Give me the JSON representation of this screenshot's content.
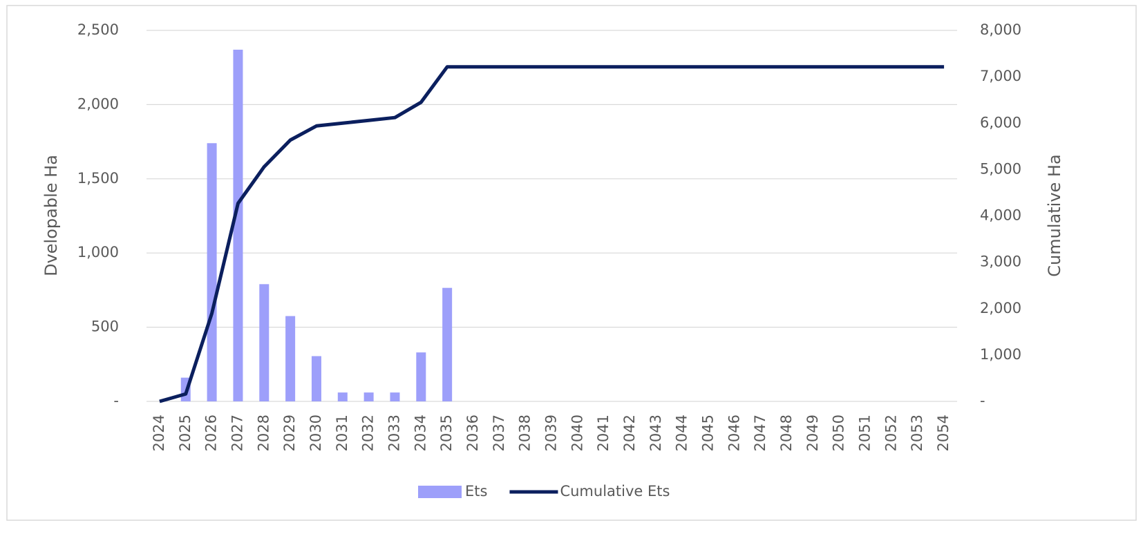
{
  "chart_data": {
    "type": "bar_line",
    "y_label": "Dvelopable Ha",
    "y2_label": "Cumulative Ha",
    "categories": [
      "2024",
      "2025",
      "2026",
      "2027",
      "2028",
      "2029",
      "2030",
      "2031",
      "2032",
      "2033",
      "2034",
      "2035",
      "2036",
      "2037",
      "2038",
      "2039",
      "2040",
      "2041",
      "2042",
      "2043",
      "2044",
      "2045",
      "2046",
      "2047",
      "2048",
      "2049",
      "2050",
      "2051",
      "2052",
      "2053",
      "2054"
    ],
    "series": [
      {
        "name": "Ets",
        "type": "bar",
        "color": "#9d9ffa",
        "values": [
          0,
          160,
          1740,
          2370,
          790,
          575,
          305,
          60,
          60,
          60,
          330,
          765,
          0,
          0,
          0,
          0,
          0,
          0,
          0,
          0,
          0,
          0,
          0,
          0,
          0,
          0,
          0,
          0,
          0,
          0,
          0
        ]
      },
      {
        "name": "Cumulative Ets",
        "type": "line",
        "axis": "y2",
        "color": "#0b1f5e",
        "values": [
          0,
          160,
          1900,
          4270,
          5060,
          5635,
          5940,
          6000,
          6060,
          6120,
          6450,
          7215,
          7215,
          7215,
          7215,
          7215,
          7215,
          7215,
          7215,
          7215,
          7215,
          7215,
          7215,
          7215,
          7215,
          7215,
          7215,
          7215,
          7215,
          7215,
          7215
        ]
      }
    ],
    "ylim": [
      0,
      2500
    ],
    "yticks": [
      {
        "value": 0,
        "label": "-"
      },
      500,
      {
        "value": 1000,
        "label": "1,000"
      },
      {
        "value": 1500,
        "label": "1,500"
      },
      {
        "value": 2000,
        "label": "2,000"
      },
      {
        "value": 2500,
        "label": "2,500"
      }
    ],
    "y2lim": [
      0,
      8000
    ],
    "y2ticks": [
      {
        "value": 0,
        "label": "-"
      },
      {
        "value": 1000,
        "label": "1,000"
      },
      {
        "value": 2000,
        "label": "2,000"
      },
      {
        "value": 3000,
        "label": "3,000"
      },
      {
        "value": 4000,
        "label": "4,000"
      },
      {
        "value": 5000,
        "label": "5,000"
      },
      {
        "value": 6000,
        "label": "6,000"
      },
      {
        "value": 7000,
        "label": "7,000"
      },
      {
        "value": 8000,
        "label": "8,000"
      }
    ],
    "grid": true,
    "legend": "bottom"
  }
}
